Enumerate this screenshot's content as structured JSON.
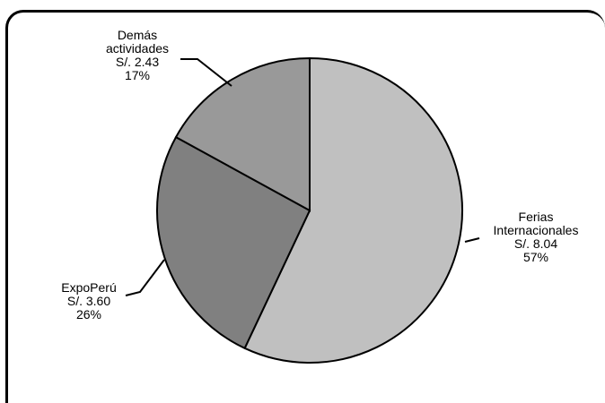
{
  "chart_data": {
    "type": "pie",
    "title": "",
    "slices": [
      {
        "label_lines": [
          "Ferias",
          "Internacionales",
          "S/. 8.04",
          "57%"
        ],
        "category": "Ferias Internacionales",
        "value": 8.04,
        "percent": 57,
        "color": "#c0c0c0"
      },
      {
        "label_lines": [
          "ExpoPerú",
          "S/. 3.60",
          "26%"
        ],
        "category": "ExpoPerú",
        "value": 3.6,
        "percent": 26,
        "color": "#808080"
      },
      {
        "label_lines": [
          "Demás",
          "actividades",
          "S/. 2.43",
          "17%"
        ],
        "category": "Demás actividades",
        "value": 2.43,
        "percent": 17,
        "color": "#999999"
      }
    ],
    "start_angle_deg": 0,
    "direction": "clockwise",
    "legend": "none",
    "grid": false
  }
}
